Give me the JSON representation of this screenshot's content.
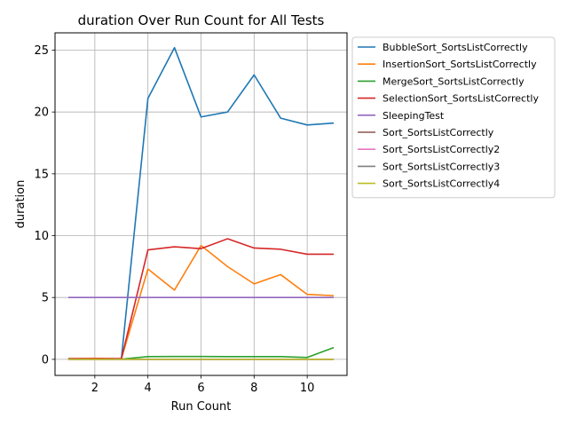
{
  "chart_data": {
    "type": "line",
    "title": "duration Over Run Count for All Tests",
    "xlabel": "Run Count",
    "ylabel": "duration",
    "xlim": [
      0.5,
      11.5
    ],
    "ylim": [
      -1.3,
      26.4
    ],
    "xticks": [
      2,
      4,
      6,
      8,
      10
    ],
    "yticks": [
      0,
      5,
      10,
      15,
      20,
      25
    ],
    "grid": true,
    "legend_position": "outside-right-top",
    "x": [
      1,
      2,
      3,
      4,
      5,
      6,
      7,
      8,
      9,
      10,
      11
    ],
    "series": [
      {
        "name": "BubbleSort_SortsListCorrectly",
        "color": "#1f77b4",
        "values": [
          0.05,
          0.05,
          0.05,
          21.1,
          25.2,
          19.6,
          20.0,
          23.0,
          19.5,
          18.95,
          19.1
        ]
      },
      {
        "name": "InsertionSort_SortsListCorrectly",
        "color": "#ff7f0e",
        "values": [
          0.05,
          0.08,
          0.05,
          7.3,
          5.6,
          9.2,
          7.5,
          6.1,
          6.85,
          5.25,
          5.15
        ]
      },
      {
        "name": "MergeSort_SortsListCorrectly",
        "color": "#2ca02c",
        "values": [
          0.02,
          0.03,
          0.02,
          0.22,
          0.23,
          0.23,
          0.22,
          0.22,
          0.22,
          0.15,
          0.95
        ]
      },
      {
        "name": "SelectionSort_SortsListCorrectly",
        "color": "#d62728",
        "values": [
          0.05,
          0.05,
          0.05,
          8.85,
          9.1,
          8.95,
          9.75,
          9.0,
          8.9,
          8.5,
          8.5
        ]
      },
      {
        "name": "SleepingTest",
        "color": "#9467bd",
        "values": [
          5.0,
          5.0,
          5.0,
          5.0,
          5.0,
          5.0,
          5.0,
          5.0,
          5.0,
          5.0,
          5.0
        ]
      },
      {
        "name": "Sort_SortsListCorrectly",
        "color": "#8c564b",
        "values": [
          0.0,
          0.0,
          0.0,
          0.0,
          0.0,
          0.0,
          0.0,
          0.0,
          0.0,
          0.0,
          0.0
        ]
      },
      {
        "name": "Sort_SortsListCorrectly2",
        "color": "#e377c2",
        "values": [
          0.0,
          0.0,
          0.0,
          0.0,
          0.0,
          0.0,
          0.0,
          0.0,
          0.0,
          0.0,
          0.0
        ]
      },
      {
        "name": "Sort_SortsListCorrectly3",
        "color": "#7f7f7f",
        "values": [
          0.0,
          0.0,
          0.0,
          0.0,
          0.0,
          0.0,
          0.0,
          0.0,
          0.0,
          0.0,
          0.0
        ]
      },
      {
        "name": "Sort_SortsListCorrectly4",
        "color": "#bcbd22",
        "values": [
          0.0,
          0.0,
          0.0,
          0.0,
          0.0,
          0.0,
          0.0,
          0.0,
          0.0,
          0.0,
          0.0
        ]
      }
    ]
  }
}
